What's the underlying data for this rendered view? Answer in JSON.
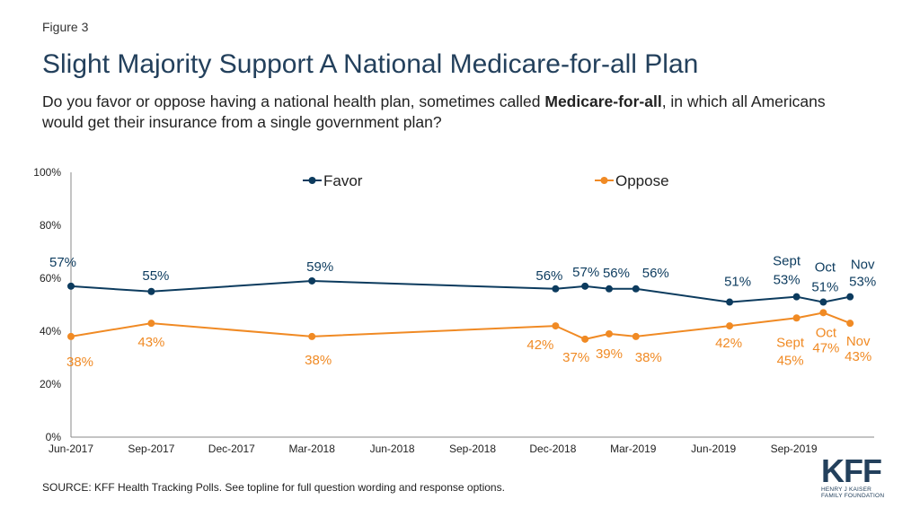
{
  "figure_label": "Figure 3",
  "title": "Slight Majority Support A National Medicare-for-all Plan",
  "subtitle": {
    "before": "Do you favor or oppose having a national health plan, sometimes called ",
    "bold": "Medicare-for-all",
    "after": ", in which all Americans would get their insurance from a single government plan?"
  },
  "source": "SOURCE: KFF Health Tracking Polls. See topline for full question wording and response options.",
  "logo": {
    "mark": "KFF",
    "line1": "HENRY J KAISER",
    "line2": "FAMILY FOUNDATION"
  },
  "colors": {
    "favor": "#0c3b5e",
    "oppose": "#f08a24",
    "axis": "#888888"
  },
  "chart_data": {
    "type": "line",
    "title": "Slight Majority Support A National Medicare-for-all Plan",
    "ylim": [
      0,
      100
    ],
    "y_ticks": [
      "0%",
      "20%",
      "40%",
      "60%",
      "80%",
      "100%"
    ],
    "x_range_months": [
      0,
      30
    ],
    "x_ticks": [
      {
        "m": 0,
        "label": "Jun-2017"
      },
      {
        "m": 3,
        "label": "Sep-2017"
      },
      {
        "m": 6,
        "label": "Dec-2017"
      },
      {
        "m": 9,
        "label": "Mar-2018"
      },
      {
        "m": 12,
        "label": "Jun-2018"
      },
      {
        "m": 15,
        "label": "Sep-2018"
      },
      {
        "m": 18,
        "label": "Dec-2018"
      },
      {
        "m": 21,
        "label": "Mar-2019"
      },
      {
        "m": 24,
        "label": "Jun-2019"
      },
      {
        "m": 27,
        "label": "Sep-2019"
      }
    ],
    "legend": "top-center",
    "series": [
      {
        "name": "Favor",
        "points": [
          {
            "m": 0,
            "v": 57,
            "label": "57%"
          },
          {
            "m": 3,
            "v": 55,
            "label": "55%"
          },
          {
            "m": 9,
            "v": 59,
            "label": "59%"
          },
          {
            "m": 18.1,
            "v": 56,
            "label": "56%"
          },
          {
            "m": 19.2,
            "v": 57,
            "label": "57%"
          },
          {
            "m": 20.1,
            "v": 56,
            "label": "56%"
          },
          {
            "m": 21.1,
            "v": 56,
            "label": "56%"
          },
          {
            "m": 24.6,
            "v": 51,
            "label": "51%"
          },
          {
            "m": 27.1,
            "v": 53,
            "label": "53%",
            "month": "Sept"
          },
          {
            "m": 28.1,
            "v": 51,
            "label": "51%",
            "month": "Oct"
          },
          {
            "m": 29.1,
            "v": 53,
            "label": "53%",
            "month": "Nov"
          }
        ]
      },
      {
        "name": "Oppose",
        "points": [
          {
            "m": 0,
            "v": 38,
            "label": "38%"
          },
          {
            "m": 3,
            "v": 43,
            "label": "43%"
          },
          {
            "m": 9,
            "v": 38,
            "label": "38%"
          },
          {
            "m": 18.1,
            "v": 42,
            "label": "42%"
          },
          {
            "m": 19.2,
            "v": 37,
            "label": "37%"
          },
          {
            "m": 20.1,
            "v": 39,
            "label": "39%"
          },
          {
            "m": 21.1,
            "v": 38,
            "label": "38%"
          },
          {
            "m": 24.6,
            "v": 42,
            "label": "42%"
          },
          {
            "m": 27.1,
            "v": 45,
            "label": "45%",
            "month": "Sept"
          },
          {
            "m": 28.1,
            "v": 47,
            "label": "47%",
            "month": "Oct"
          },
          {
            "m": 29.1,
            "v": 43,
            "label": "43%",
            "month": "Nov"
          }
        ]
      }
    ]
  }
}
